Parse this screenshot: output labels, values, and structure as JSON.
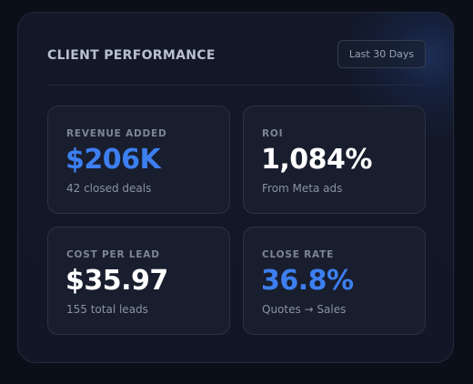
{
  "widget": {
    "title": "CLIENT PERFORMANCE",
    "range_label": "Last 30 Days"
  },
  "metrics": [
    {
      "label": "REVENUE ADDED",
      "value": "$206K",
      "sub": "42 closed deals",
      "value_color": "#3d7ff0"
    },
    {
      "label": "ROI",
      "value": "1,084%",
      "sub": "From Meta ads",
      "value_color": "#ffffff"
    },
    {
      "label": "COST PER LEAD",
      "value": "$35.97",
      "sub": "155 total leads",
      "value_color": "#ffffff"
    },
    {
      "label": "CLOSE RATE",
      "value": "36.8%",
      "sub": "Quotes → Sales",
      "value_color": "#3d7ff0"
    }
  ],
  "colors": {
    "accent": "#3d7ff0",
    "background": "#0b0f19",
    "card": "#121828",
    "tile": "#181e2e"
  }
}
